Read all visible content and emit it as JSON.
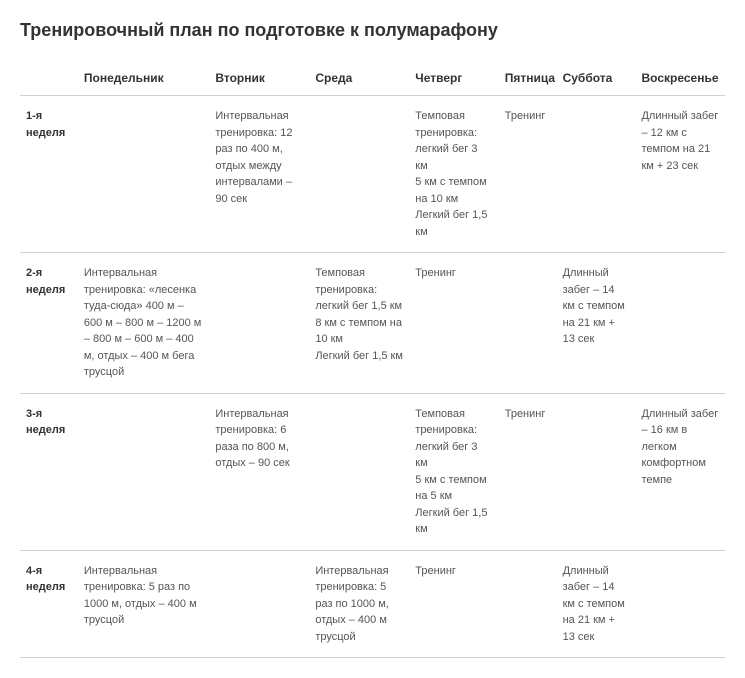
{
  "title": "Тренировочный план по подготовке к полумарафону",
  "columns": [
    "",
    "Понедельник",
    "Вторник",
    "Среда",
    "Четверг",
    "Пятница",
    "Суббота",
    "Воскресенье"
  ],
  "rows": [
    {
      "week": "1-я неделя",
      "cells": [
        "",
        "Интервальная тренировка: 12 раз по 400 м, отдых между интервалами – 90 сек",
        "",
        "Темповая тренировка: легкий бег 3 км\n5 км с темпом на 10 км\nЛегкий бег 1,5 км",
        "Тренинг",
        "",
        "Длинный забег – 12 км с темпом на 21 км + 23 сек"
      ]
    },
    {
      "week": "2-я неделя",
      "cells": [
        "Интервальная тренировка: «лесенка туда-сюда» 400 м – 600 м – 800 м – 1200 м – 800 м – 600 м – 400 м, отдых – 400 м бега трусцой",
        "",
        "Темповая тренировка: легкий бег 1,5 км\n8 км с темпом на 10 км\nЛегкий бег 1,5 км",
        "Тренинг",
        "",
        "Длинный забег – 14 км с темпом на 21 км + 13 сек",
        ""
      ]
    },
    {
      "week": "3-я неделя",
      "cells": [
        "",
        "Интервальная тренировка: 6 раза по 800 м, отдых – 90 сек",
        "",
        "Темповая тренировка: легкий бег 3 км\n5 км с темпом на 5 км\nЛегкий бег 1,5 км",
        "Тренинг",
        "",
        "Длинный забег – 16 км в легком комфортном темпе"
      ]
    },
    {
      "week": "4-я неделя",
      "cells": [
        "Интервальная тренировка: 5 раз по 1000 м, отдых – 400 м трусцой",
        "",
        "Интервальная тренировка: 5 раз по 1000 м, отдых – 400 м трусцой",
        "Тренинг",
        "",
        "Длинный забег – 14 км с темпом на 21 км + 13 сек",
        ""
      ]
    }
  ],
  "colors": {
    "text_primary": "#333333",
    "text_secondary": "#555555",
    "border": "#d0d0d0",
    "background": "#ffffff"
  },
  "typography": {
    "title_fontsize": 18,
    "header_fontsize": 12,
    "cell_fontsize": 11,
    "font_family": "Arial, Helvetica, sans-serif"
  }
}
